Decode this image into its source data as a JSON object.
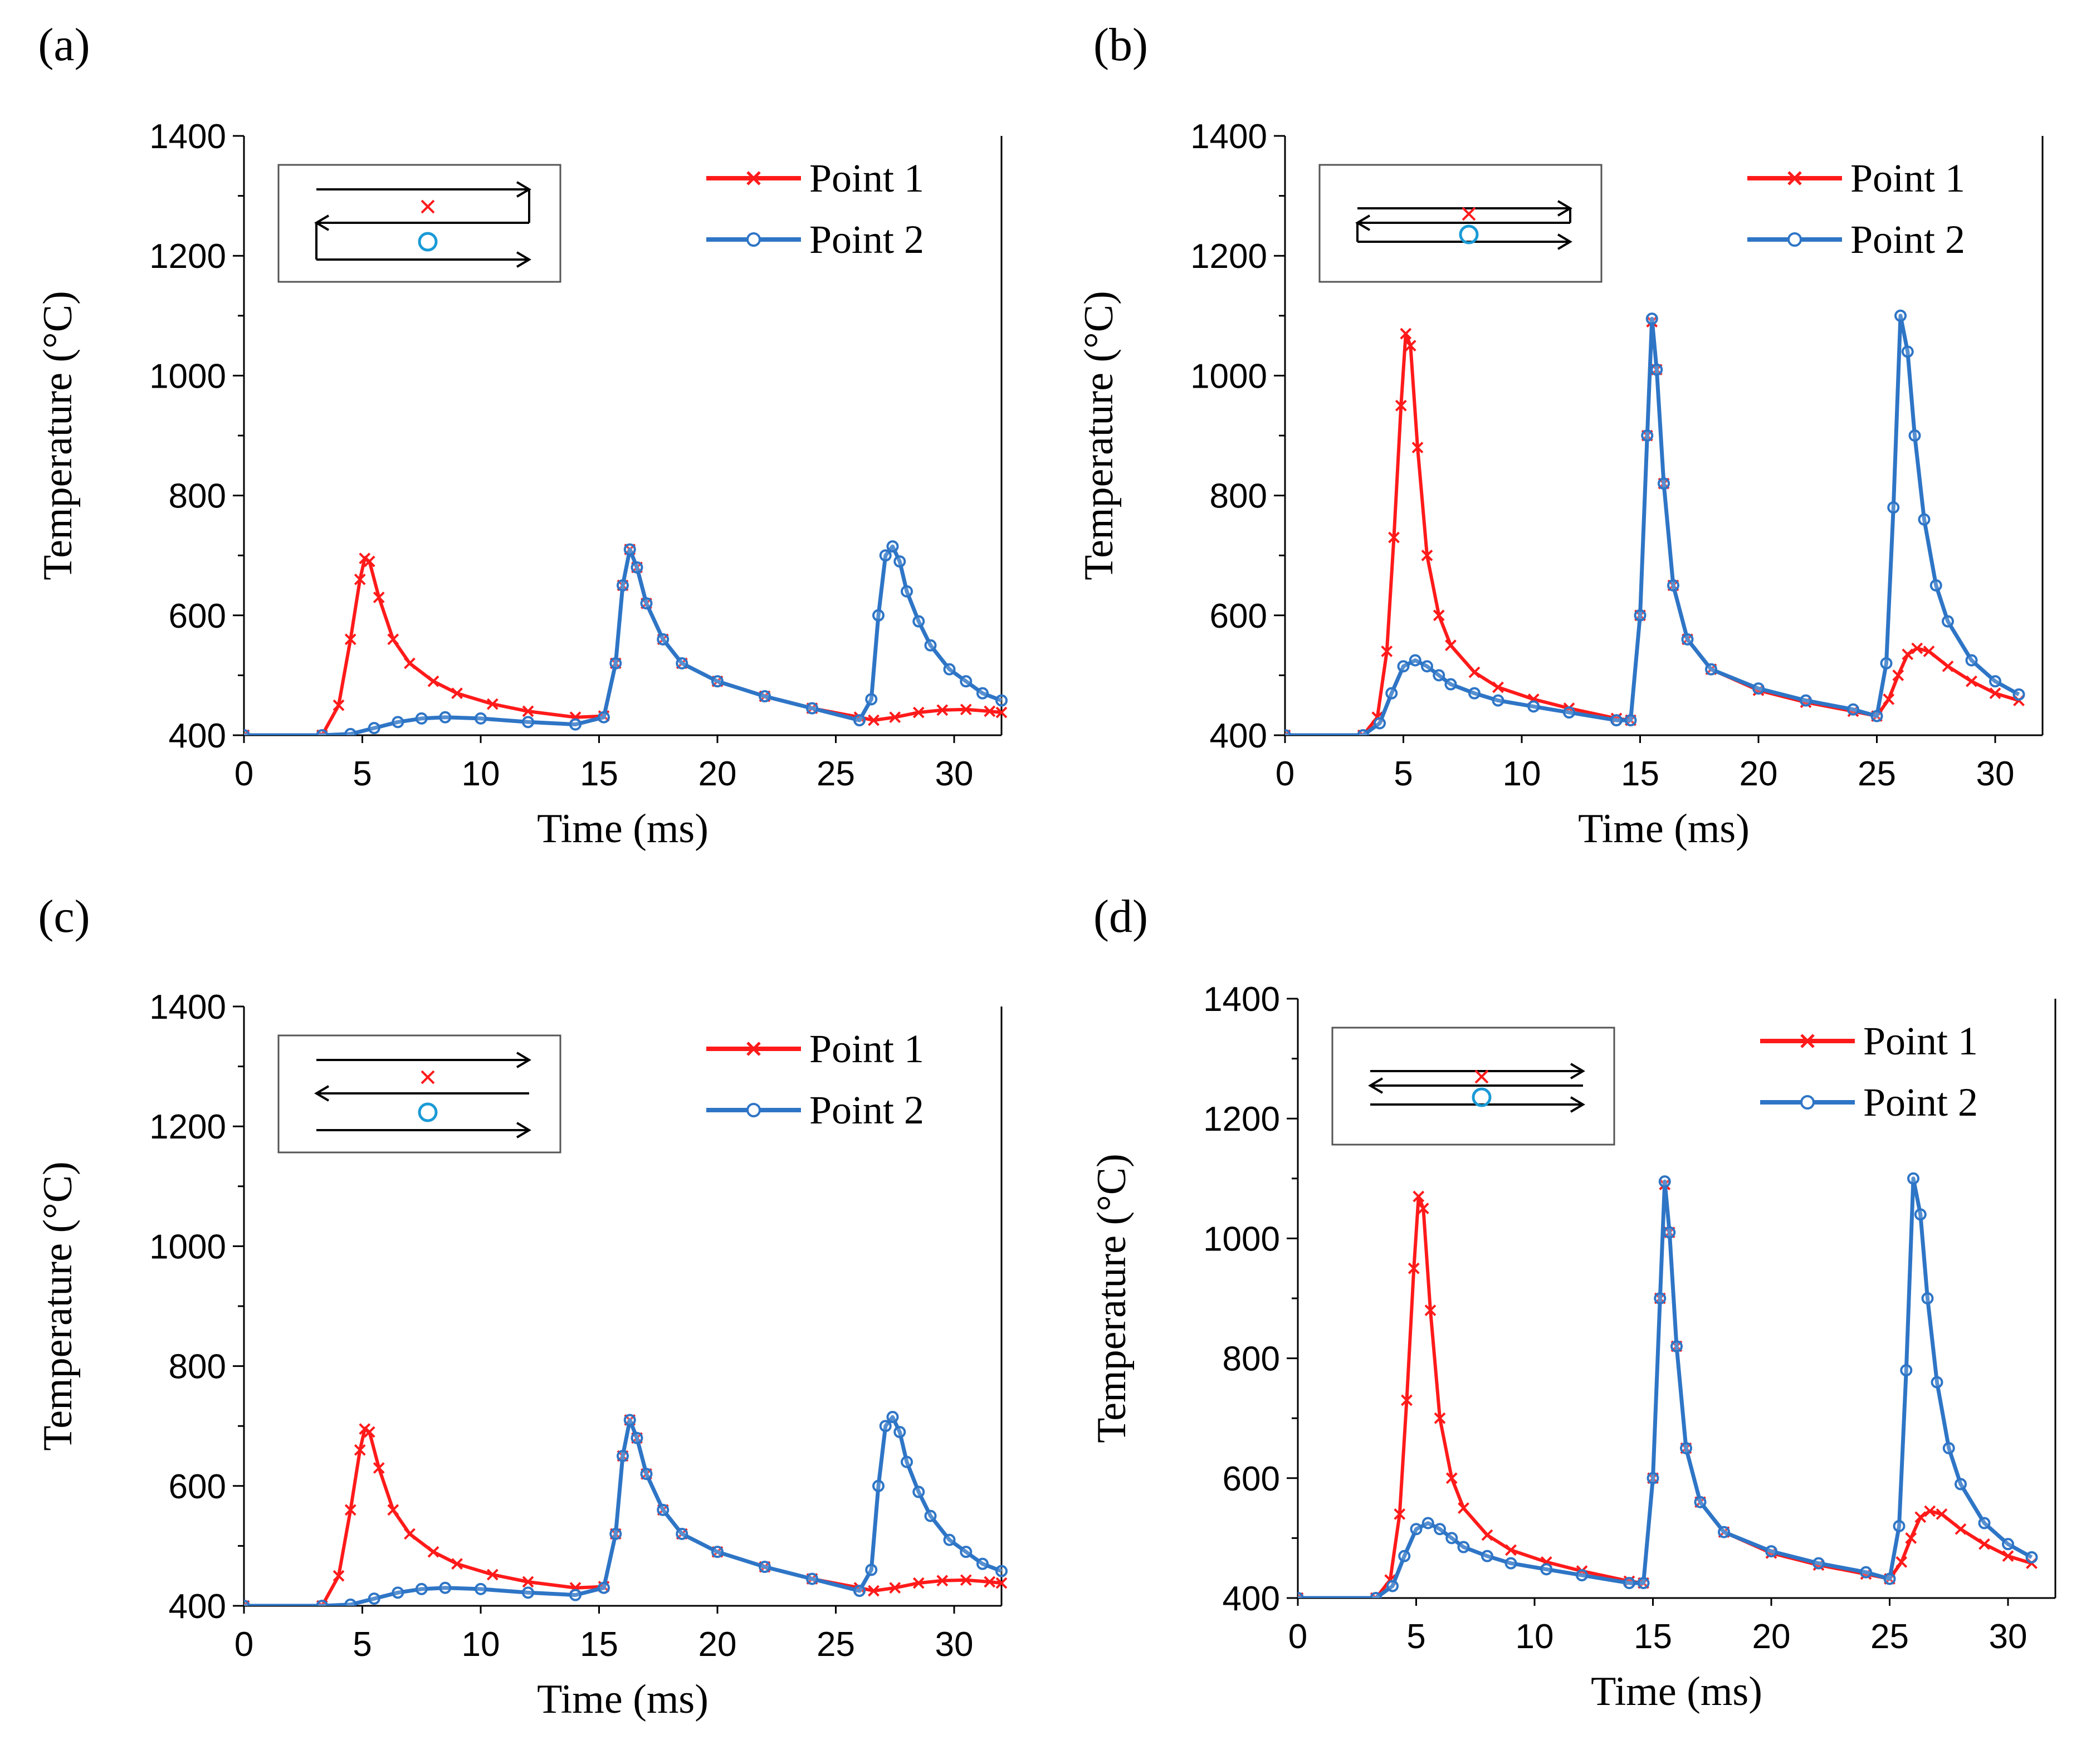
{
  "colors": {
    "point1": "#ff1a1a",
    "point2": "#2e75c6",
    "inset_circle": "#1a9ad6",
    "axis": "#000000"
  },
  "chart_data": [
    {
      "panel": "(a)",
      "type": "line",
      "xlabel": "Time (ms)",
      "ylabel": "Temperature (°C)",
      "xlim": [
        0,
        32
      ],
      "ylim": [
        400,
        1400
      ],
      "xticks": [
        "0",
        "5",
        "10",
        "15",
        "20",
        "25",
        "30"
      ],
      "yticks": [
        "400",
        "600",
        "800",
        "1000",
        "1200",
        "1400"
      ],
      "inset": "zigzag",
      "series": [
        {
          "name": "Point 1",
          "marker": "x",
          "x": [
            0,
            3.3,
            4.0,
            4.5,
            4.9,
            5.1,
            5.3,
            5.7,
            6.3,
            7.0,
            8.0,
            9.0,
            10.5,
            12.0,
            14.0,
            15.2,
            15.7,
            16.0,
            16.3,
            16.6,
            17.0,
            17.7,
            18.5,
            20.0,
            22.0,
            24.0,
            26.0,
            26.6,
            27.5,
            28.5,
            29.5,
            30.5,
            31.5,
            32.0
          ],
          "y": [
            400,
            400,
            450,
            560,
            660,
            695,
            690,
            630,
            560,
            520,
            490,
            470,
            452,
            440,
            430,
            432,
            520,
            650,
            710,
            680,
            620,
            560,
            520,
            490,
            465,
            445,
            430,
            425,
            430,
            438,
            442,
            443,
            440,
            438
          ]
        },
        {
          "name": "Point 2",
          "marker": "o",
          "x": [
            0,
            3.3,
            4.5,
            5.5,
            6.5,
            7.5,
            8.5,
            10.0,
            12.0,
            14.0,
            15.2,
            15.7,
            16.0,
            16.3,
            16.6,
            17.0,
            17.7,
            18.5,
            20.0,
            22.0,
            24.0,
            26.0,
            26.5,
            26.8,
            27.1,
            27.4,
            27.7,
            28.0,
            28.5,
            29.0,
            29.8,
            30.5,
            31.2,
            32.0
          ],
          "y": [
            400,
            400,
            402,
            412,
            422,
            428,
            430,
            428,
            422,
            418,
            430,
            520,
            650,
            710,
            680,
            620,
            560,
            520,
            490,
            465,
            445,
            425,
            460,
            600,
            700,
            715,
            690,
            640,
            590,
            550,
            510,
            490,
            470,
            458
          ]
        }
      ]
    },
    {
      "panel": "(b)",
      "type": "line",
      "xlabel": "Time (ms)",
      "ylabel": "Temperature (°C)",
      "xlim": [
        0,
        32
      ],
      "ylim": [
        400,
        1400
      ],
      "xticks": [
        "0",
        "5",
        "10",
        "15",
        "20",
        "25",
        "30"
      ],
      "yticks": [
        "400",
        "600",
        "800",
        "1000",
        "1200",
        "1400"
      ],
      "inset": "zigzag-close",
      "series": [
        {
          "name": "Point 1",
          "marker": "x",
          "x": [
            0,
            3.3,
            3.9,
            4.3,
            4.6,
            4.9,
            5.1,
            5.3,
            5.6,
            6.0,
            6.5,
            7.0,
            8.0,
            9.0,
            10.5,
            12.0,
            14.0,
            14.6,
            15.0,
            15.3,
            15.5,
            15.7,
            16.0,
            16.4,
            17.0,
            18.0,
            20.0,
            22.0,
            24.0,
            25.0,
            25.5,
            25.9,
            26.3,
            26.7,
            27.2,
            28.0,
            29.0,
            30.0,
            31.0
          ],
          "y": [
            400,
            400,
            430,
            540,
            730,
            950,
            1070,
            1050,
            880,
            700,
            600,
            550,
            505,
            480,
            460,
            445,
            428,
            425,
            600,
            900,
            1090,
            1010,
            820,
            650,
            560,
            510,
            475,
            455,
            440,
            432,
            460,
            500,
            535,
            545,
            540,
            515,
            490,
            470,
            458
          ]
        },
        {
          "name": "Point 2",
          "marker": "o",
          "x": [
            0,
            3.3,
            4.0,
            4.5,
            5.0,
            5.5,
            6.0,
            6.5,
            7.0,
            8.0,
            9.0,
            10.5,
            12.0,
            14.0,
            14.6,
            15.0,
            15.3,
            15.5,
            15.7,
            16.0,
            16.4,
            17.0,
            18.0,
            20.0,
            22.0,
            24.0,
            25.0,
            25.4,
            25.7,
            26.0,
            26.3,
            26.6,
            27.0,
            27.5,
            28.0,
            29.0,
            30.0,
            31.0
          ],
          "y": [
            400,
            400,
            420,
            470,
            515,
            525,
            515,
            500,
            485,
            470,
            458,
            448,
            438,
            425,
            425,
            600,
            900,
            1095,
            1010,
            820,
            650,
            560,
            510,
            478,
            458,
            443,
            432,
            520,
            780,
            1100,
            1040,
            900,
            760,
            650,
            590,
            525,
            490,
            468
          ]
        }
      ]
    },
    {
      "panel": "(c)",
      "type": "line",
      "xlabel": "Time (ms)",
      "ylabel": "Temperature (°C)",
      "xlim": [
        0,
        32
      ],
      "ylim": [
        400,
        1400
      ],
      "xticks": [
        "0",
        "5",
        "10",
        "15",
        "20",
        "25",
        "30"
      ],
      "yticks": [
        "400",
        "600",
        "800",
        "1000",
        "1200",
        "1400"
      ],
      "inset": "raster",
      "series": [
        {
          "name": "Point 1",
          "marker": "x",
          "x": [
            0,
            3.3,
            4.0,
            4.5,
            4.9,
            5.1,
            5.3,
            5.7,
            6.3,
            7.0,
            8.0,
            9.0,
            10.5,
            12.0,
            14.0,
            15.2,
            15.7,
            16.0,
            16.3,
            16.6,
            17.0,
            17.7,
            18.5,
            20.0,
            22.0,
            24.0,
            26.0,
            26.6,
            27.5,
            28.5,
            29.5,
            30.5,
            31.5,
            32.0
          ],
          "y": [
            400,
            400,
            450,
            560,
            660,
            695,
            690,
            630,
            560,
            520,
            490,
            470,
            452,
            440,
            430,
            432,
            520,
            650,
            710,
            680,
            620,
            560,
            520,
            490,
            465,
            445,
            430,
            425,
            430,
            438,
            442,
            443,
            440,
            438
          ]
        },
        {
          "name": "Point 2",
          "marker": "o",
          "x": [
            0,
            3.3,
            4.5,
            5.5,
            6.5,
            7.5,
            8.5,
            10.0,
            12.0,
            14.0,
            15.2,
            15.7,
            16.0,
            16.3,
            16.6,
            17.0,
            17.7,
            18.5,
            20.0,
            22.0,
            24.0,
            26.0,
            26.5,
            26.8,
            27.1,
            27.4,
            27.7,
            28.0,
            28.5,
            29.0,
            29.8,
            30.5,
            31.2,
            32.0
          ],
          "y": [
            400,
            400,
            402,
            412,
            422,
            428,
            430,
            428,
            422,
            418,
            430,
            520,
            650,
            710,
            680,
            620,
            560,
            520,
            490,
            465,
            445,
            425,
            460,
            600,
            700,
            715,
            690,
            640,
            590,
            550,
            510,
            490,
            470,
            458
          ]
        }
      ]
    },
    {
      "panel": "(d)",
      "type": "line",
      "xlabel": "Time (ms)",
      "ylabel": "Temperature (°C)",
      "xlim": [
        0,
        32
      ],
      "ylim": [
        400,
        1400
      ],
      "xticks": [
        "0",
        "5",
        "10",
        "15",
        "20",
        "25",
        "30"
      ],
      "yticks": [
        "400",
        "600",
        "800",
        "1000",
        "1200",
        "1400"
      ],
      "inset": "raster-close",
      "series": [
        {
          "name": "Point 1",
          "marker": "x",
          "x": [
            0,
            3.3,
            3.9,
            4.3,
            4.6,
            4.9,
            5.1,
            5.3,
            5.6,
            6.0,
            6.5,
            7.0,
            8.0,
            9.0,
            10.5,
            12.0,
            14.0,
            14.6,
            15.0,
            15.3,
            15.5,
            15.7,
            16.0,
            16.4,
            17.0,
            18.0,
            20.0,
            22.0,
            24.0,
            25.0,
            25.5,
            25.9,
            26.3,
            26.7,
            27.2,
            28.0,
            29.0,
            30.0,
            31.0
          ],
          "y": [
            400,
            400,
            430,
            540,
            730,
            950,
            1070,
            1050,
            880,
            700,
            600,
            550,
            505,
            480,
            460,
            445,
            428,
            425,
            600,
            900,
            1090,
            1010,
            820,
            650,
            560,
            510,
            475,
            455,
            440,
            432,
            460,
            500,
            535,
            545,
            540,
            515,
            490,
            470,
            458
          ]
        },
        {
          "name": "Point 2",
          "marker": "o",
          "x": [
            0,
            3.3,
            4.0,
            4.5,
            5.0,
            5.5,
            6.0,
            6.5,
            7.0,
            8.0,
            9.0,
            10.5,
            12.0,
            14.0,
            14.6,
            15.0,
            15.3,
            15.5,
            15.7,
            16.0,
            16.4,
            17.0,
            18.0,
            20.0,
            22.0,
            24.0,
            25.0,
            25.4,
            25.7,
            26.0,
            26.3,
            26.6,
            27.0,
            27.5,
            28.0,
            29.0,
            30.0,
            31.0
          ],
          "y": [
            400,
            400,
            420,
            470,
            515,
            525,
            515,
            500,
            485,
            470,
            458,
            448,
            438,
            425,
            425,
            600,
            900,
            1095,
            1010,
            820,
            650,
            560,
            510,
            478,
            458,
            443,
            432,
            520,
            780,
            1100,
            1040,
            900,
            760,
            650,
            590,
            525,
            490,
            468
          ]
        }
      ]
    }
  ]
}
